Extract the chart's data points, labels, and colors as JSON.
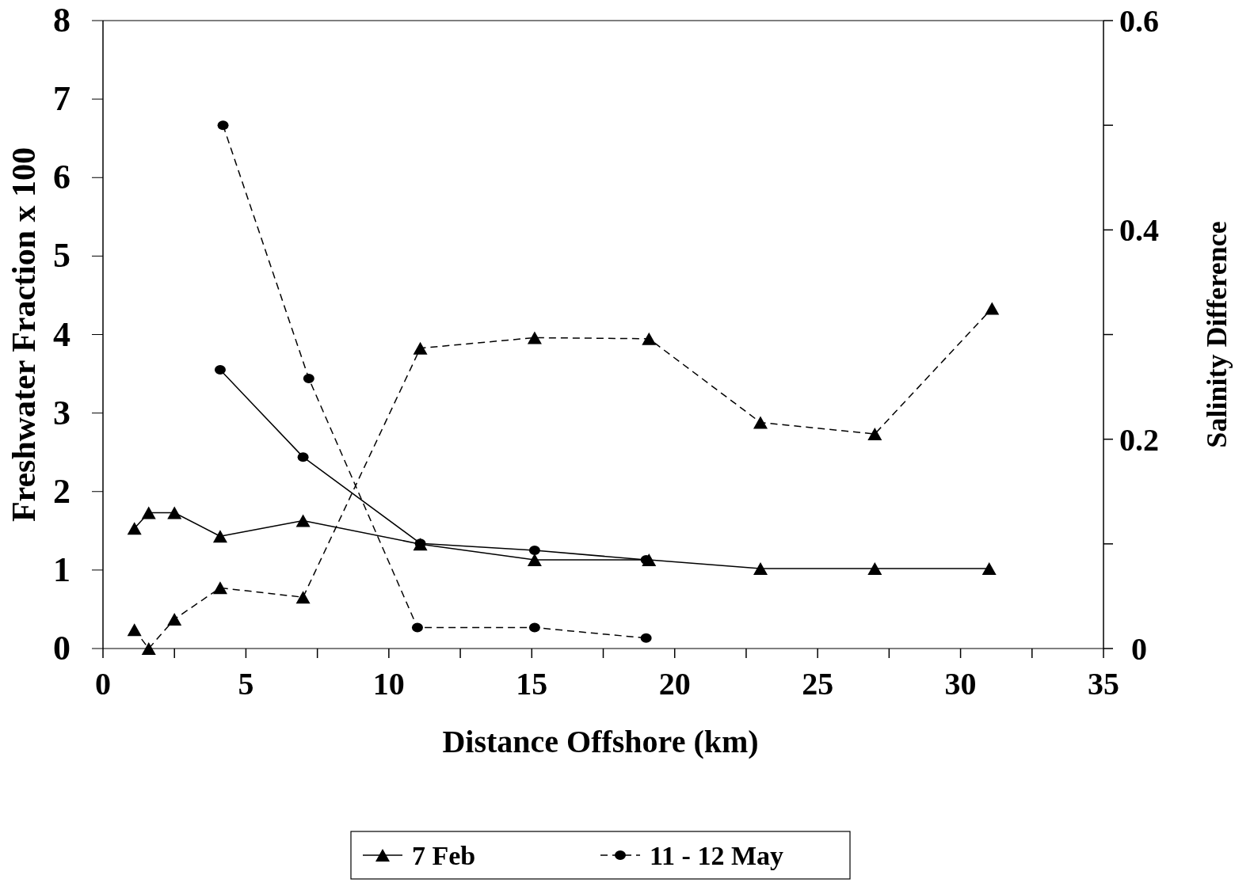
{
  "chart_data": {
    "type": "line",
    "xlabel": "Distance Offshore (km)",
    "ylabel": "Freshwater Fraction x 100",
    "y2label": "Salinity Difference",
    "xlim": [
      0,
      35
    ],
    "xticks": [
      0,
      {
        "value": 2.5,
        "label": null
      },
      5,
      {
        "value": 7.5,
        "label": null
      },
      10,
      {
        "value": 12.5,
        "label": null
      },
      15,
      {
        "value": 17.5,
        "label": null
      },
      20,
      {
        "value": 22.5,
        "label": null
      },
      25,
      {
        "value": 27.5,
        "label": null
      },
      30,
      {
        "value": 32.5,
        "label": null
      },
      35
    ],
    "ylim": [
      0,
      8
    ],
    "yticks": [
      0,
      1,
      2,
      3,
      4,
      5,
      6,
      7,
      8
    ],
    "y2lim": [
      0,
      0.6
    ],
    "y2ticks": [
      0,
      {
        "value": 0.1,
        "label": null
      },
      0.2,
      {
        "value": 0.3,
        "label": null
      },
      0.4,
      {
        "value": 0.5,
        "label": null
      },
      0.6
    ],
    "grid": false,
    "legend": "bottom",
    "series": [
      {
        "name": "7 Feb",
        "color": "#000000",
        "marker": "triangle",
        "line_style": "solid",
        "x": [
          1.1,
          1.6,
          2.5,
          4.1,
          7.0,
          11.1,
          15.1,
          19.1,
          23.0,
          27.0,
          31.0
        ],
        "values": [
          1.53,
          1.73,
          1.73,
          1.43,
          1.63,
          1.33,
          1.13,
          1.13,
          1.02,
          1.02,
          1.02
        ]
      },
      {
        "color": "#000000",
        "marker": "triangle",
        "line_style": "dashed",
        "axis": "y2",
        "x": [
          1.1,
          1.6,
          2.5,
          4.1,
          7.0,
          11.1,
          15.1,
          19.1,
          23.0,
          27.0,
          31.1
        ],
        "values": [
          0.018,
          0.0,
          0.028,
          0.058,
          0.049,
          0.287,
          0.297,
          0.296,
          0.216,
          0.205,
          0.325
        ]
      },
      {
        "color": "#000000",
        "marker": "circle",
        "line_style": "solid",
        "x": [
          4.1,
          7.0,
          11.1,
          15.1,
          19.0
        ],
        "values": [
          3.55,
          2.44,
          1.34,
          1.25,
          1.13
        ]
      },
      {
        "name": "11 - 12 May",
        "color": "#000000",
        "marker": "circle",
        "line_style": "dashed",
        "axis": "y2",
        "x": [
          4.2,
          7.2,
          11.0,
          15.1,
          19.0
        ],
        "values": [
          0.5,
          0.258,
          0.02,
          0.02,
          0.01
        ]
      }
    ]
  }
}
